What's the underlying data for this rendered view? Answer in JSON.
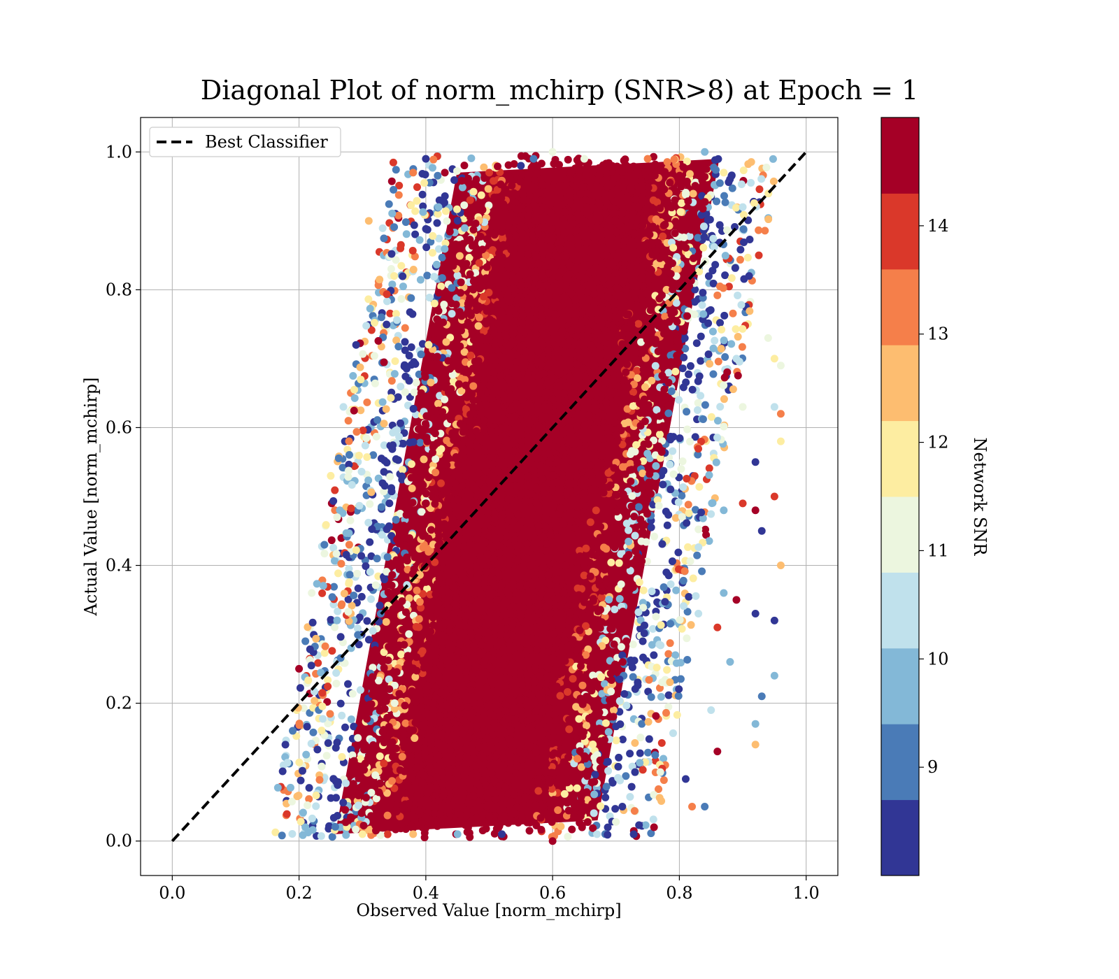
{
  "chart_data": {
    "type": "scatter",
    "title": "Diagonal Plot of norm_mchirp (SNR>8) at Epoch = 1",
    "xlabel": "Observed Value [norm_mchirp]",
    "ylabel": "Actual Value [norm_mchirp]",
    "xlim": [
      -0.05,
      1.05
    ],
    "ylim": [
      -0.05,
      1.05
    ],
    "xticks": [
      "0.0",
      "0.2",
      "0.4",
      "0.6",
      "0.8",
      "1.0"
    ],
    "yticks": [
      "0.0",
      "0.2",
      "0.4",
      "0.6",
      "0.8",
      "1.0"
    ],
    "grid": true,
    "legend": {
      "placement": "upper-left",
      "entries": [
        {
          "label": "Best Classifier",
          "style": "black dashed line"
        }
      ]
    },
    "reference_line": {
      "name": "Best Classifier",
      "x": [
        0.0,
        1.0
      ],
      "y": [
        0.0,
        1.0
      ],
      "color": "#000000"
    },
    "colorbar": {
      "label": "Network SNR",
      "range": [
        8.0,
        15.0
      ],
      "ticks": [
        "9",
        "10",
        "11",
        "12",
        "13",
        "14"
      ],
      "bins": [
        {
          "from": 8.0,
          "to": 8.7,
          "color": "#313695"
        },
        {
          "from": 8.7,
          "to": 9.4,
          "color": "#4a7bb7"
        },
        {
          "from": 9.4,
          "to": 10.1,
          "color": "#83b8d7"
        },
        {
          "from": 10.1,
          "to": 10.8,
          "color": "#c0e1ec"
        },
        {
          "from": 10.8,
          "to": 11.5,
          "color": "#ecf6df"
        },
        {
          "from": 11.5,
          "to": 12.2,
          "color": "#fdeda1"
        },
        {
          "from": 12.2,
          "to": 12.9,
          "color": "#fdbd70"
        },
        {
          "from": 12.9,
          "to": 13.6,
          "color": "#f57f4a"
        },
        {
          "from": 13.6,
          "to": 14.3,
          "color": "#da382a"
        },
        {
          "from": 14.3,
          "to": 15.0,
          "color": "#a50026"
        }
      ]
    },
    "series": [
      {
        "points": [
          [
            0.31,
            0.9
          ],
          [
            0.36,
            0.86
          ],
          [
            0.38,
            0.97
          ],
          [
            0.4,
            0.99
          ],
          [
            0.43,
            0.97
          ],
          [
            0.35,
            0.82
          ],
          [
            0.33,
            0.76
          ],
          [
            0.29,
            0.72
          ],
          [
            0.27,
            0.63
          ],
          [
            0.25,
            0.53
          ],
          [
            0.26,
            0.47
          ],
          [
            0.24,
            0.43
          ],
          [
            0.22,
            0.36
          ],
          [
            0.21,
            0.29
          ],
          [
            0.2,
            0.25
          ],
          [
            0.19,
            0.16
          ],
          [
            0.21,
            0.02
          ],
          [
            0.3,
            0.01
          ],
          [
            0.38,
            0.01
          ],
          [
            0.45,
            0.01
          ],
          [
            0.52,
            0.01
          ],
          [
            0.6,
            0.0
          ],
          [
            0.67,
            0.01
          ],
          [
            0.71,
            0.05
          ],
          [
            0.73,
            0.1
          ],
          [
            0.76,
            0.02
          ],
          [
            0.77,
            0.1
          ],
          [
            0.81,
            0.09
          ],
          [
            0.82,
            0.05
          ],
          [
            0.84,
            0.05
          ],
          [
            0.86,
            0.13
          ],
          [
            0.85,
            0.19
          ],
          [
            0.88,
            0.26
          ],
          [
            0.87,
            0.36
          ],
          [
            0.89,
            0.35
          ],
          [
            0.86,
            0.31
          ],
          [
            0.83,
            0.33
          ],
          [
            0.87,
            0.48
          ],
          [
            0.9,
            0.49
          ],
          [
            0.92,
            0.55
          ],
          [
            0.93,
            0.45
          ],
          [
            0.92,
            0.48
          ],
          [
            0.92,
            0.33
          ],
          [
            0.95,
            0.32
          ],
          [
            0.92,
            0.17
          ],
          [
            0.93,
            0.21
          ],
          [
            0.92,
            0.14
          ],
          [
            0.95,
            0.24
          ],
          [
            0.96,
            0.4
          ],
          [
            0.95,
            0.5
          ],
          [
            0.94,
            0.73
          ],
          [
            0.95,
            0.7
          ],
          [
            0.96,
            0.69
          ],
          [
            0.95,
            0.63
          ],
          [
            0.96,
            0.62
          ],
          [
            0.96,
            0.58
          ],
          [
            0.9,
            0.63
          ],
          [
            0.89,
            0.7
          ],
          [
            0.91,
            0.82
          ],
          [
            0.9,
            0.92
          ],
          [
            0.87,
            0.97
          ],
          [
            0.84,
            1.0
          ],
          [
            0.75,
            0.99
          ],
          [
            0.65,
            0.99
          ],
          [
            0.6,
            1.0
          ],
          [
            0.57,
            0.99
          ],
          [
            0.55,
            0.98
          ],
          [
            0.5,
            0.97
          ],
          [
            0.47,
            0.93
          ],
          [
            0.42,
            0.92
          ]
        ]
      }
    ]
  }
}
